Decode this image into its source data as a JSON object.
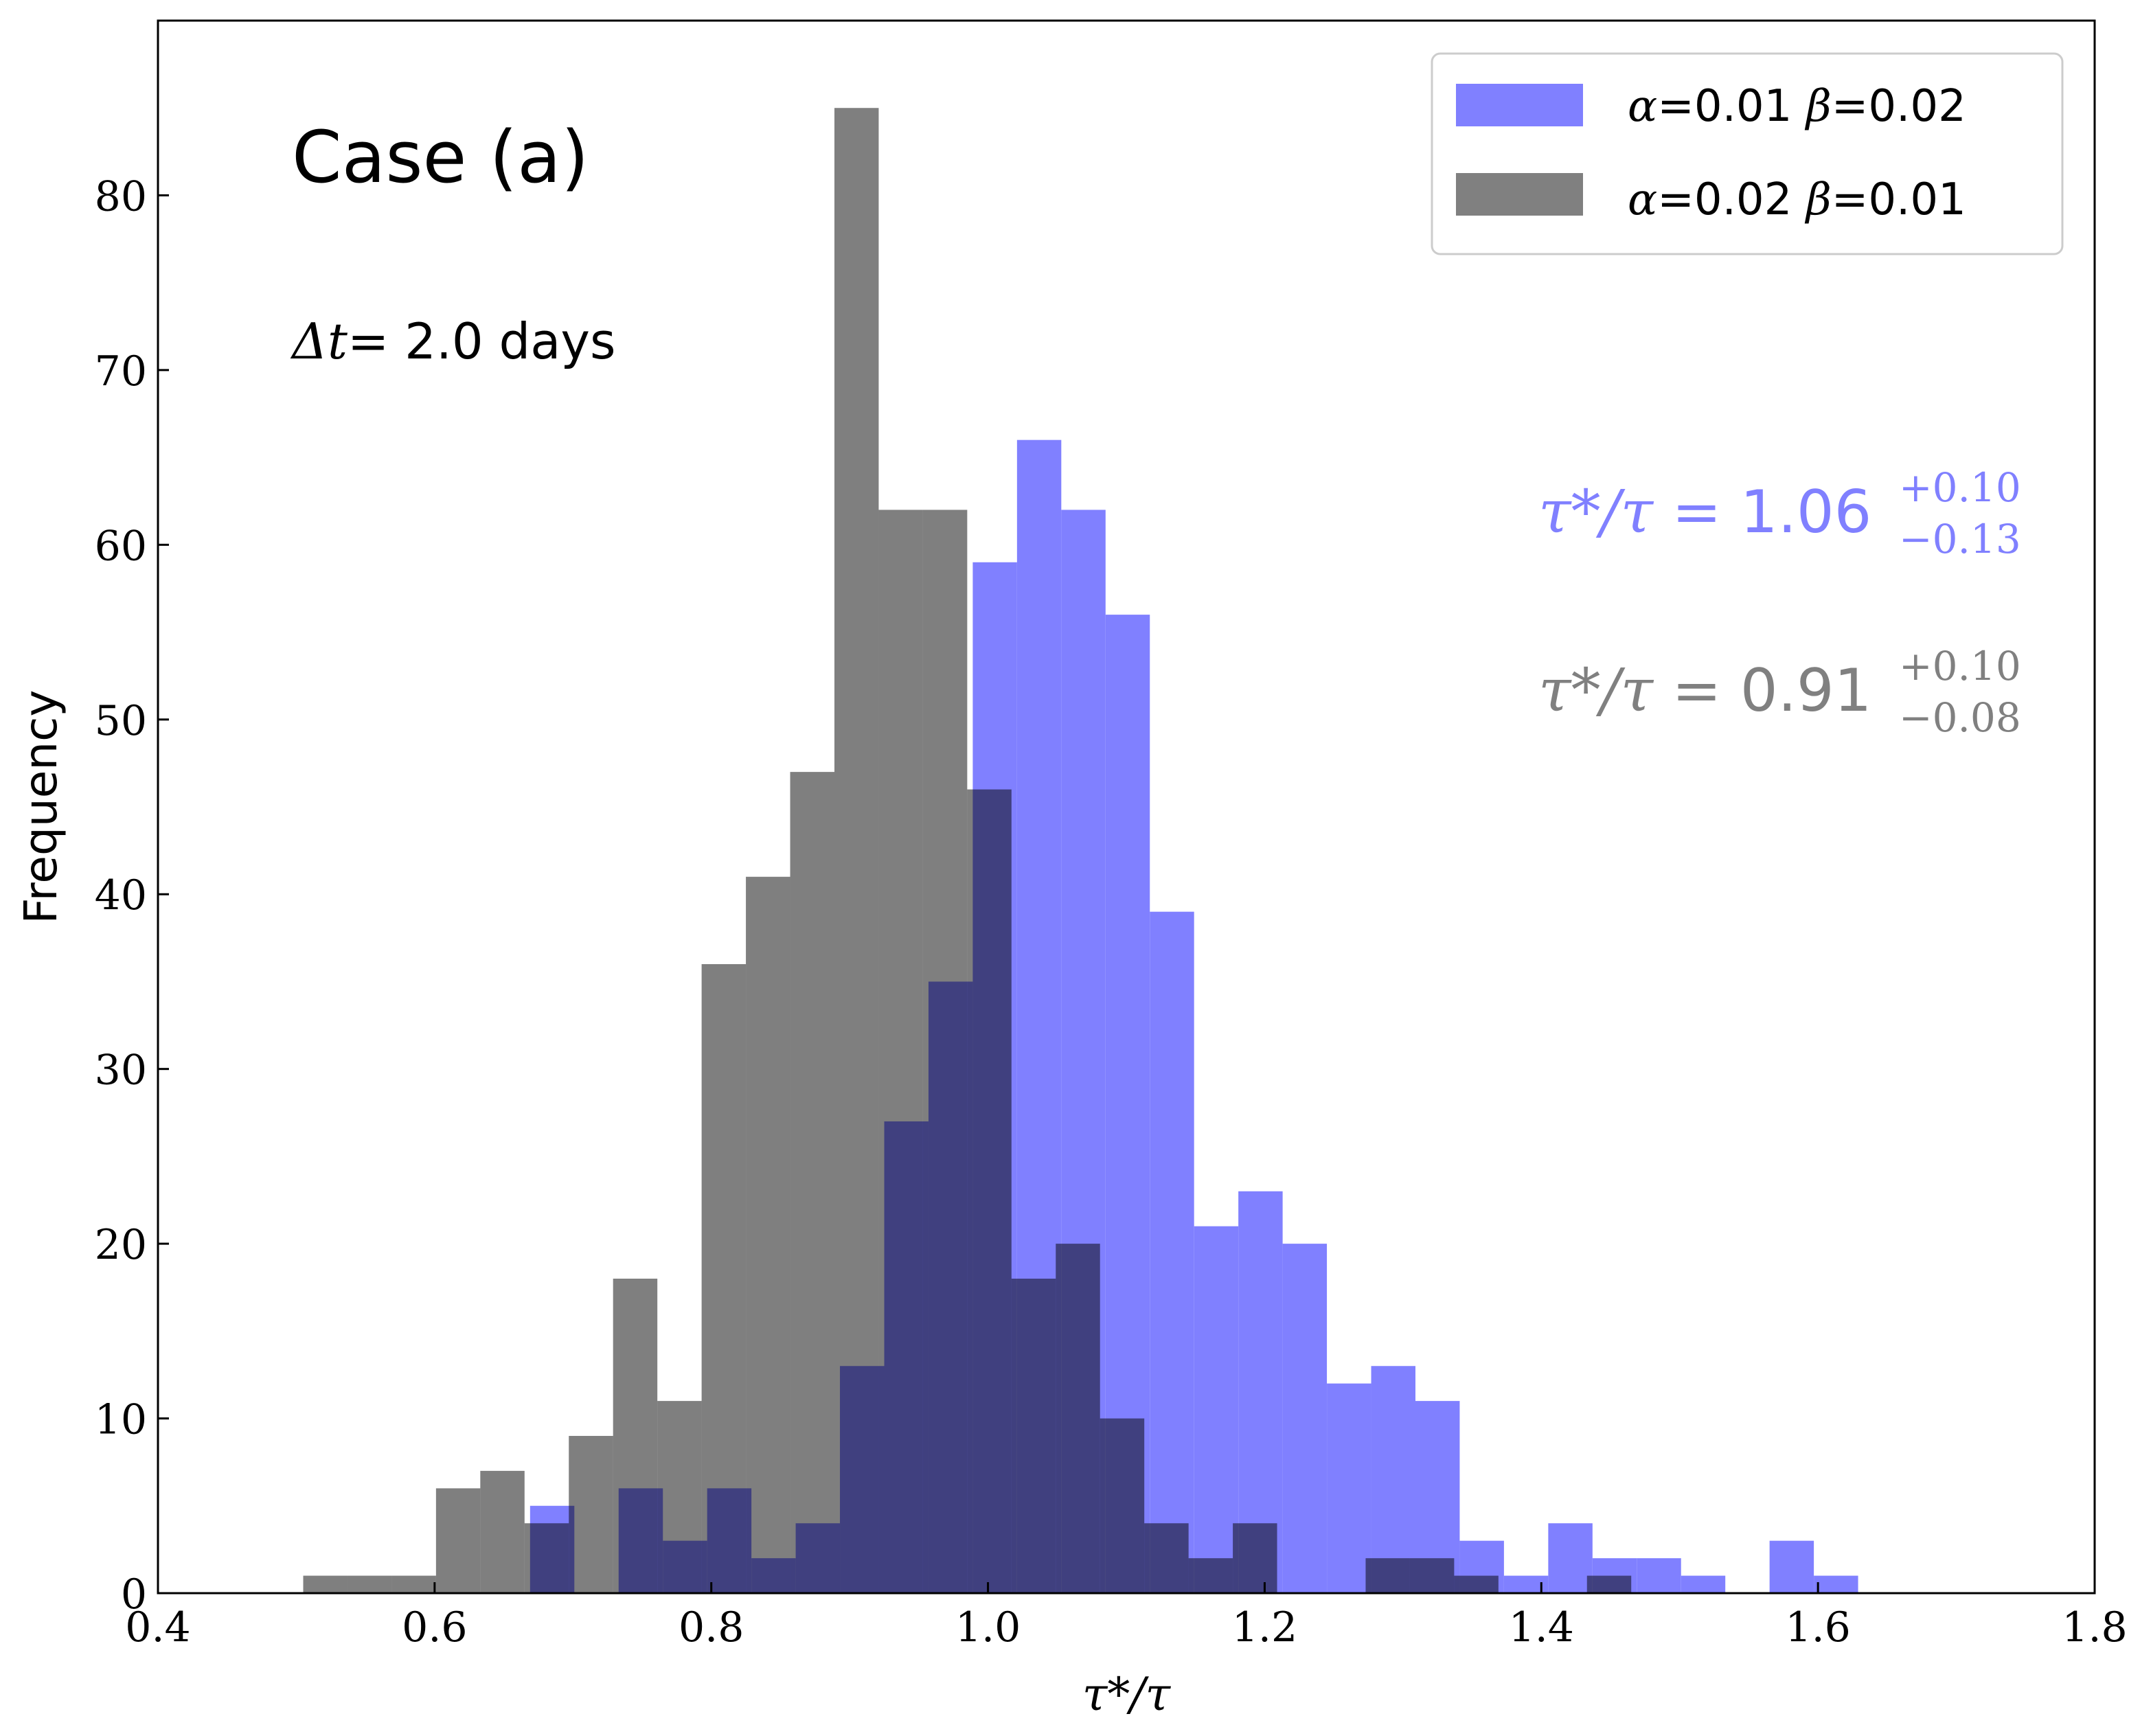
{
  "chart_data": {
    "type": "bar",
    "xlabel": "τ*/τ",
    "ylabel": "Frequency",
    "xlim": [
      0.4,
      1.8
    ],
    "ylim": [
      0,
      90
    ],
    "xticks": [
      0.4,
      0.6,
      0.8,
      1.0,
      1.2,
      1.4,
      1.6,
      1.8
    ],
    "xtick_labels": [
      "0.4",
      "0.6",
      "0.8",
      "1.0",
      "1.2",
      "1.4",
      "1.6",
      "1.8"
    ],
    "yticks": [
      0,
      10,
      20,
      30,
      40,
      50,
      60,
      70,
      80
    ],
    "ytick_labels": [
      "0",
      "10",
      "20",
      "30",
      "40",
      "50",
      "60",
      "70",
      "80"
    ],
    "grid": false,
    "legend_position": "top-right",
    "annotations": {
      "case": "Case (a)",
      "dt_symbol": "Δt",
      "dt_value": "= 2.0 days"
    },
    "series": [
      {
        "name_parts": {
          "a_sym": "α",
          "a_val": "=0.01 ",
          "b_sym": "β",
          "b_val": "=0.02"
        },
        "color": "#8080ff",
        "opacity": 1,
        "result": {
          "lhs": "τ*/τ",
          "eq": " = ",
          "value": "1.06",
          "plus": "+0.10",
          "minus": "−0.13"
        },
        "bins": [
          [
            0.669,
            0.701,
            5
          ],
          [
            0.733,
            0.765,
            6
          ],
          [
            0.765,
            0.797,
            3
          ],
          [
            0.797,
            0.829,
            6
          ],
          [
            0.829,
            0.861,
            2
          ],
          [
            0.861,
            0.893,
            4
          ],
          [
            0.893,
            0.925,
            13
          ],
          [
            0.925,
            0.957,
            27
          ],
          [
            0.957,
            0.989,
            35
          ],
          [
            0.989,
            1.021,
            59
          ],
          [
            1.021,
            1.053,
            66
          ],
          [
            1.053,
            1.085,
            62
          ],
          [
            1.085,
            1.117,
            56
          ],
          [
            1.117,
            1.149,
            39
          ],
          [
            1.149,
            1.181,
            21
          ],
          [
            1.181,
            1.213,
            23
          ],
          [
            1.213,
            1.245,
            20
          ],
          [
            1.245,
            1.277,
            12
          ],
          [
            1.277,
            1.309,
            13
          ],
          [
            1.309,
            1.341,
            11
          ],
          [
            1.341,
            1.373,
            3
          ],
          [
            1.373,
            1.405,
            1
          ],
          [
            1.405,
            1.437,
            4
          ],
          [
            1.437,
            1.469,
            2
          ],
          [
            1.469,
            1.501,
            2
          ],
          [
            1.501,
            1.533,
            1
          ],
          [
            1.565,
            1.597,
            3
          ],
          [
            1.597,
            1.629,
            1
          ]
        ]
      },
      {
        "name_parts": {
          "a_sym": "α",
          "a_val": "=0.02 ",
          "b_sym": "β",
          "b_val": "=0.01"
        },
        "color": "#000000",
        "opacity": 0.5,
        "result": {
          "lhs": "τ*/τ",
          "eq": " = ",
          "value": "0.91",
          "plus": "+0.10",
          "minus": "−0.08"
        },
        "bins": [
          [
            0.505,
            0.537,
            1
          ],
          [
            0.537,
            0.569,
            1
          ],
          [
            0.569,
            0.601,
            1
          ],
          [
            0.601,
            0.633,
            6
          ],
          [
            0.633,
            0.665,
            7
          ],
          [
            0.665,
            0.697,
            4
          ],
          [
            0.697,
            0.729,
            9
          ],
          [
            0.729,
            0.761,
            18
          ],
          [
            0.761,
            0.793,
            11
          ],
          [
            0.793,
            0.825,
            36
          ],
          [
            0.825,
            0.857,
            41
          ],
          [
            0.857,
            0.889,
            47
          ],
          [
            0.889,
            0.921,
            85
          ],
          [
            0.921,
            0.953,
            62
          ],
          [
            0.953,
            0.985,
            62
          ],
          [
            0.985,
            1.017,
            46
          ],
          [
            1.017,
            1.049,
            18
          ],
          [
            1.049,
            1.081,
            20
          ],
          [
            1.081,
            1.113,
            10
          ],
          [
            1.113,
            1.145,
            4
          ],
          [
            1.145,
            1.177,
            2
          ],
          [
            1.177,
            1.209,
            4
          ],
          [
            1.273,
            1.305,
            2
          ],
          [
            1.305,
            1.337,
            2
          ],
          [
            1.337,
            1.369,
            1
          ],
          [
            1.433,
            1.465,
            1
          ]
        ]
      }
    ]
  }
}
